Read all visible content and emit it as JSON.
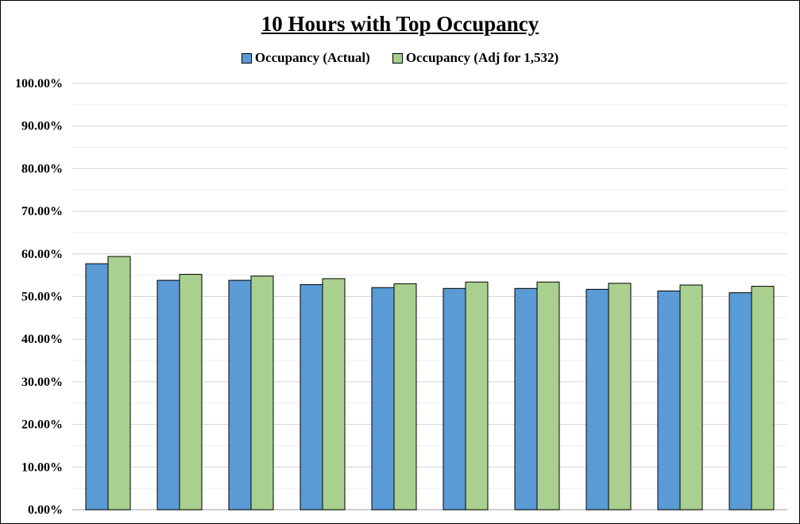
{
  "chart_data": {
    "type": "bar",
    "title": "10 Hours with Top Occupancy",
    "xlabel": "",
    "ylabel": "",
    "categories": [
      "",
      "",
      "",
      "",
      "",
      "",
      "",
      "",
      "",
      ""
    ],
    "series": [
      {
        "name": "Occupancy (Actual)",
        "color": "#5b9bd5",
        "values": [
          57.7,
          53.8,
          53.8,
          52.8,
          52.1,
          51.9,
          51.9,
          51.7,
          51.3,
          50.9
        ]
      },
      {
        "name": "Occupancy (Adj for 1,532)",
        "color": "#a9d08e",
        "values": [
          59.4,
          55.2,
          54.8,
          54.2,
          53.0,
          53.4,
          53.4,
          53.1,
          52.7,
          52.4
        ]
      }
    ],
    "ylim": [
      0,
      100
    ],
    "yticks": [
      "0.00%",
      "10.00%",
      "20.00%",
      "30.00%",
      "40.00%",
      "50.00%",
      "60.00%",
      "70.00%",
      "80.00%",
      "90.00%",
      "100.00%"
    ],
    "ytick_values": [
      0,
      10,
      20,
      30,
      40,
      50,
      60,
      70,
      80,
      90,
      100
    ],
    "minor_gridlines": true,
    "grid": true,
    "legend_position": "top"
  }
}
